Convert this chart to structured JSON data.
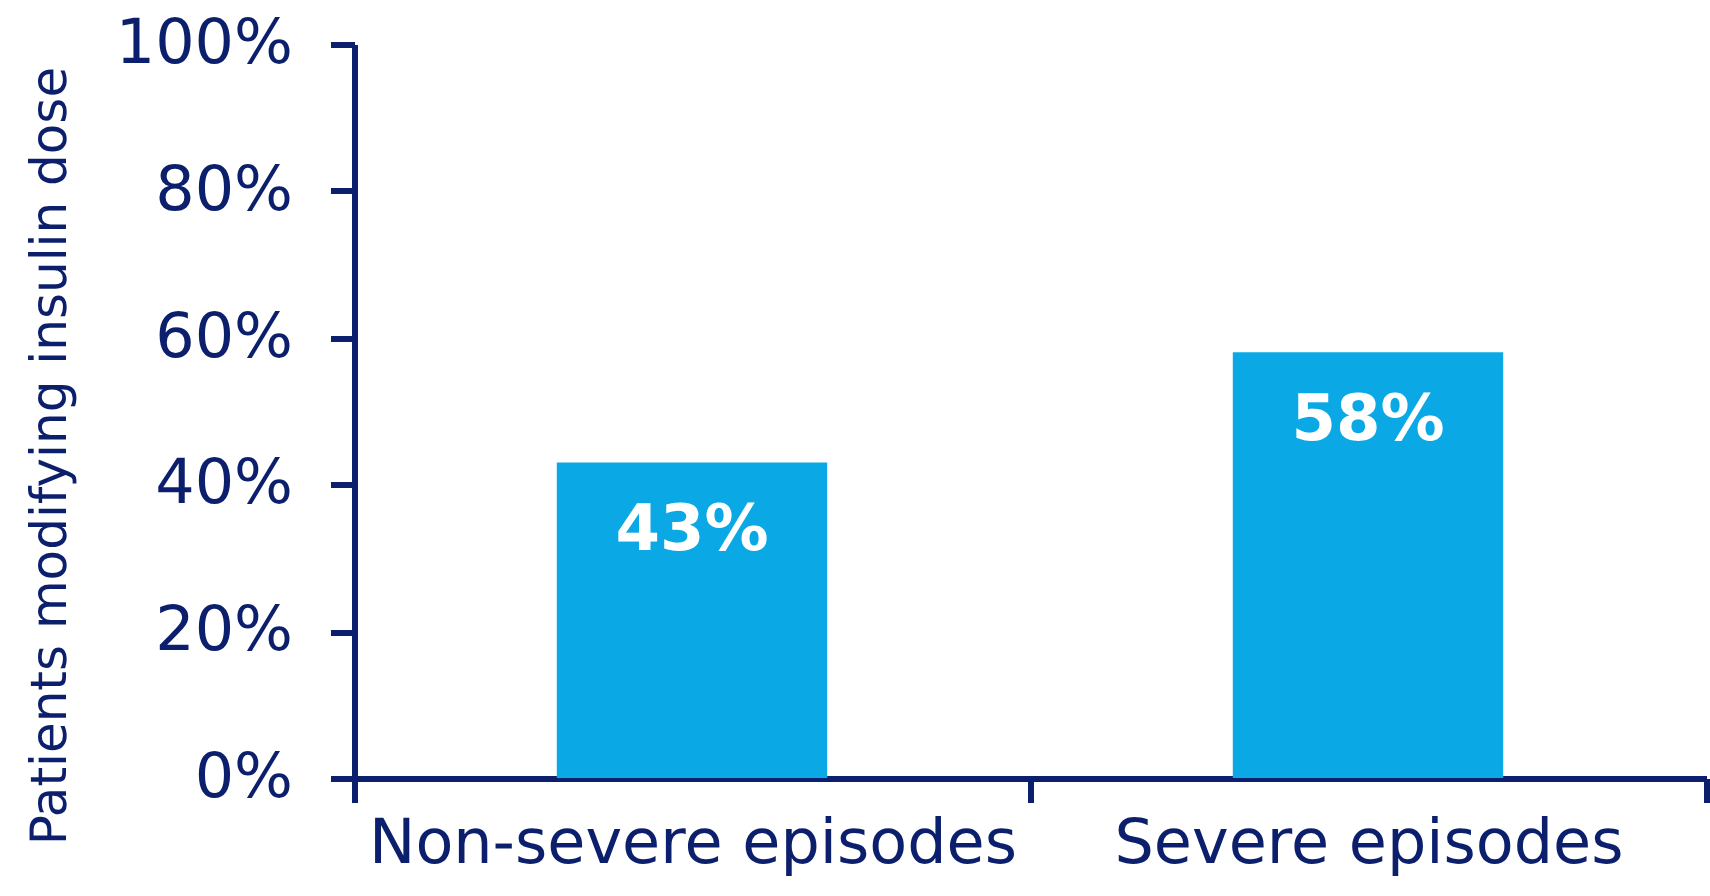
{
  "chart_data": {
    "type": "bar",
    "ylabel": "Patients modifying insulin dose",
    "categories": [
      "Non-severe episodes",
      "Severe episodes"
    ],
    "values": [
      43,
      58
    ],
    "color": "#0aa9e6",
    "value_labels": [
      "43%",
      "58%"
    ],
    "ylim": [
      0,
      100
    ],
    "yticks": [
      {
        "value": 0,
        "label": "0%"
      },
      {
        "value": 20,
        "label": "20%"
      },
      {
        "value": 40,
        "label": "40%"
      },
      {
        "value": 60,
        "label": "60%"
      },
      {
        "value": 80,
        "label": "80%"
      },
      {
        "value": 100,
        "label": "100%"
      }
    ]
  }
}
